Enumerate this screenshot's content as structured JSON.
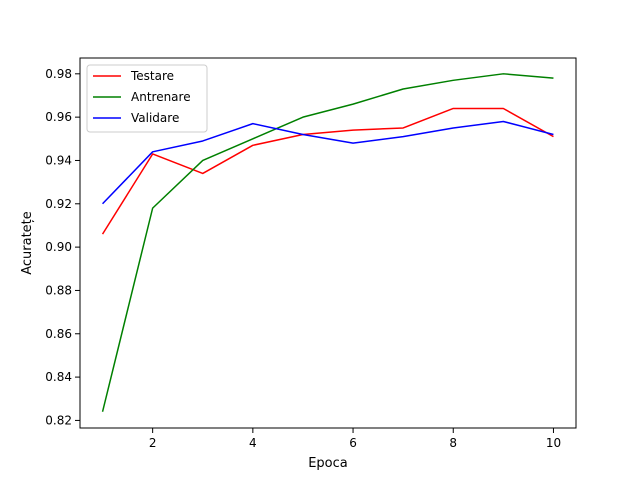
{
  "chart_data": {
    "type": "line",
    "title": "",
    "xlabel": "Epoca",
    "ylabel": "Acuratețe",
    "xlim": [
      0.55,
      10.45
    ],
    "ylim": [
      0.8165,
      0.9873
    ],
    "xticks": [
      2,
      4,
      6,
      8,
      10
    ],
    "yticks": [
      0.82,
      0.84,
      0.86,
      0.88,
      0.9,
      0.92,
      0.94,
      0.96,
      0.98
    ],
    "xtick_labels": [
      "2",
      "4",
      "6",
      "8",
      "10"
    ],
    "ytick_labels": [
      "0.82",
      "0.84",
      "0.86",
      "0.88",
      "0.90",
      "0.92",
      "0.94",
      "0.96",
      "0.98"
    ],
    "grid": false,
    "legend_position": "upper-left",
    "x": [
      1,
      2,
      3,
      4,
      5,
      6,
      7,
      8,
      9,
      10
    ],
    "series": [
      {
        "name": "Testare",
        "color": "#ff0000",
        "values": [
          0.906,
          0.943,
          0.934,
          0.947,
          0.952,
          0.954,
          0.955,
          0.964,
          0.964,
          0.951
        ]
      },
      {
        "name": "Antrenare",
        "color": "#008000",
        "values": [
          0.824,
          0.918,
          0.94,
          0.95,
          0.96,
          0.966,
          0.973,
          0.977,
          0.98,
          0.978
        ]
      },
      {
        "name": "Validare",
        "color": "#0000ff",
        "values": [
          0.92,
          0.944,
          0.949,
          0.957,
          0.952,
          0.948,
          0.951,
          0.955,
          0.958,
          0.952
        ]
      }
    ]
  }
}
